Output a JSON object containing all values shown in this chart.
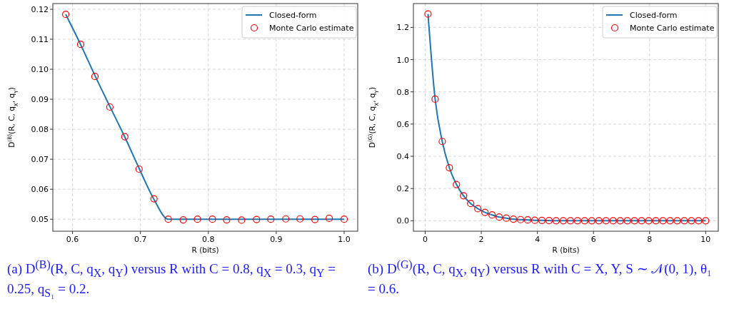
{
  "chart_data": [
    {
      "type": "line",
      "xlabel": "R (bits)",
      "ylabel": "D$^{(B)}$(R, C, q$_{X}$, q$_{Y}$)",
      "xlim": [
        0.571,
        1.02
      ],
      "ylim": [
        0.046,
        0.1219
      ],
      "xticks": [
        0.6,
        0.7,
        0.8,
        0.9,
        {
          "value": 1,
          "label": "1.0"
        }
      ],
      "yticks": [
        0.05,
        0.06,
        0.07,
        0.08,
        0.09,
        {
          "value": 0.1,
          "label": "0.10"
        },
        0.11,
        0.12
      ],
      "grid": true,
      "legend": "top right",
      "x": [
        0.59,
        0.612,
        0.633,
        0.655,
        0.677,
        0.698,
        0.72,
        0.741,
        0.763,
        0.784,
        0.806,
        0.827,
        0.849,
        0.871,
        0.892,
        0.914,
        0.935,
        0.957,
        0.978,
        1.0
      ],
      "series": [
        {
          "name": "Closed-form",
          "color": "#1f77b4",
          "line_style": "solid",
          "values": [
            0.1183,
            0.1082,
            0.0979,
            0.0876,
            0.0774,
            0.067,
            0.0566,
            0.05,
            0.05,
            0.05,
            0.05,
            0.05,
            0.05,
            0.05,
            0.05,
            0.05,
            0.05,
            0.05,
            0.05,
            0.05
          ]
        },
        {
          "name": "Monte Carlo estimate",
          "type": "scatter",
          "color": "#ff0000",
          "marker": "circle",
          "values": [
            0.1183,
            0.1083,
            0.0976,
            0.0874,
            0.0775,
            0.0667,
            0.0568,
            0.05,
            0.0498,
            0.05,
            0.05,
            0.0498,
            0.0497,
            0.0499,
            0.05,
            0.0501,
            0.0501,
            0.0499,
            0.0503,
            0.05
          ]
        }
      ],
      "annotations": [
        "(a) D$^{(B)}$(R, C, q$_{X}$, q$_{Y}$) versus R with C = 0.8, q$_{X}$ = 0.3, q$_{Y}$ = 0.25, q$_{S₁}$ = 0.2."
      ]
    },
    {
      "type": "line",
      "xlabel": "R (bits)",
      "ylabel": "D$^{(G)}$(R, C, q$_{X}$, q$_{Y}$)",
      "xlim": [
        -0.42,
        10.45
      ],
      "ylim": [
        -0.065,
        1.348
      ],
      "xticks": [
        0,
        2,
        4,
        6,
        8,
        10
      ],
      "yticks": [
        {
          "value": 0,
          "label": "0.0"
        },
        0.2,
        0.4,
        0.6,
        0.8,
        {
          "value": 1,
          "label": "1.0"
        },
        1.2
      ],
      "grid": true,
      "legend": "top right",
      "x": [
        0.1,
        0.354,
        0.608,
        0.862,
        1.115,
        1.369,
        1.623,
        1.877,
        2.131,
        2.385,
        2.638,
        2.892,
        3.146,
        3.4,
        3.654,
        3.908,
        4.162,
        4.415,
        4.669,
        4.923,
        5.177,
        5.431,
        5.685,
        5.938,
        6.192,
        6.446,
        6.7,
        6.954,
        7.208,
        7.462,
        7.715,
        7.969,
        8.223,
        8.477,
        8.731,
        8.985,
        9.238,
        9.492,
        9.746,
        10.0
      ],
      "series": [
        {
          "name": "Closed-form",
          "color": "#1f77b4",
          "line_style": "solid",
          "values": [
            1.283,
            0.755,
            0.492,
            0.329,
            0.225,
            0.155,
            0.107,
            0.075,
            0.052,
            0.036,
            0.023,
            0.016,
            0.01,
            0.007,
            0.005,
            0.003,
            0.002,
            0.001,
            0,
            0,
            0,
            0,
            0,
            0,
            0,
            0,
            0,
            0,
            0,
            0,
            0,
            0,
            0,
            0,
            0,
            0,
            0,
            0,
            0,
            0
          ]
        },
        {
          "name": "Monte Carlo estimate",
          "type": "scatter",
          "color": "#ff0000",
          "marker": "circle",
          "values": [
            1.283,
            0.755,
            0.492,
            0.329,
            0.225,
            0.155,
            0.107,
            0.075,
            0.052,
            0.036,
            0.023,
            0.016,
            0.01,
            0.007,
            0.005,
            0.003,
            0.002,
            0.001,
            0,
            0,
            0,
            0,
            0,
            0,
            0,
            0,
            0,
            0,
            0,
            0,
            0,
            0,
            0,
            0,
            0,
            0,
            0,
            0,
            0,
            0
          ]
        }
      ],
      "annotations": [
        "(b) D$^{(G)}$(R, C, q$_{X}$, q$_{Y}$) versus R with C = X, Y, S ∼ 𝒩(0, 1), θ₁ = 0.6."
      ]
    }
  ]
}
